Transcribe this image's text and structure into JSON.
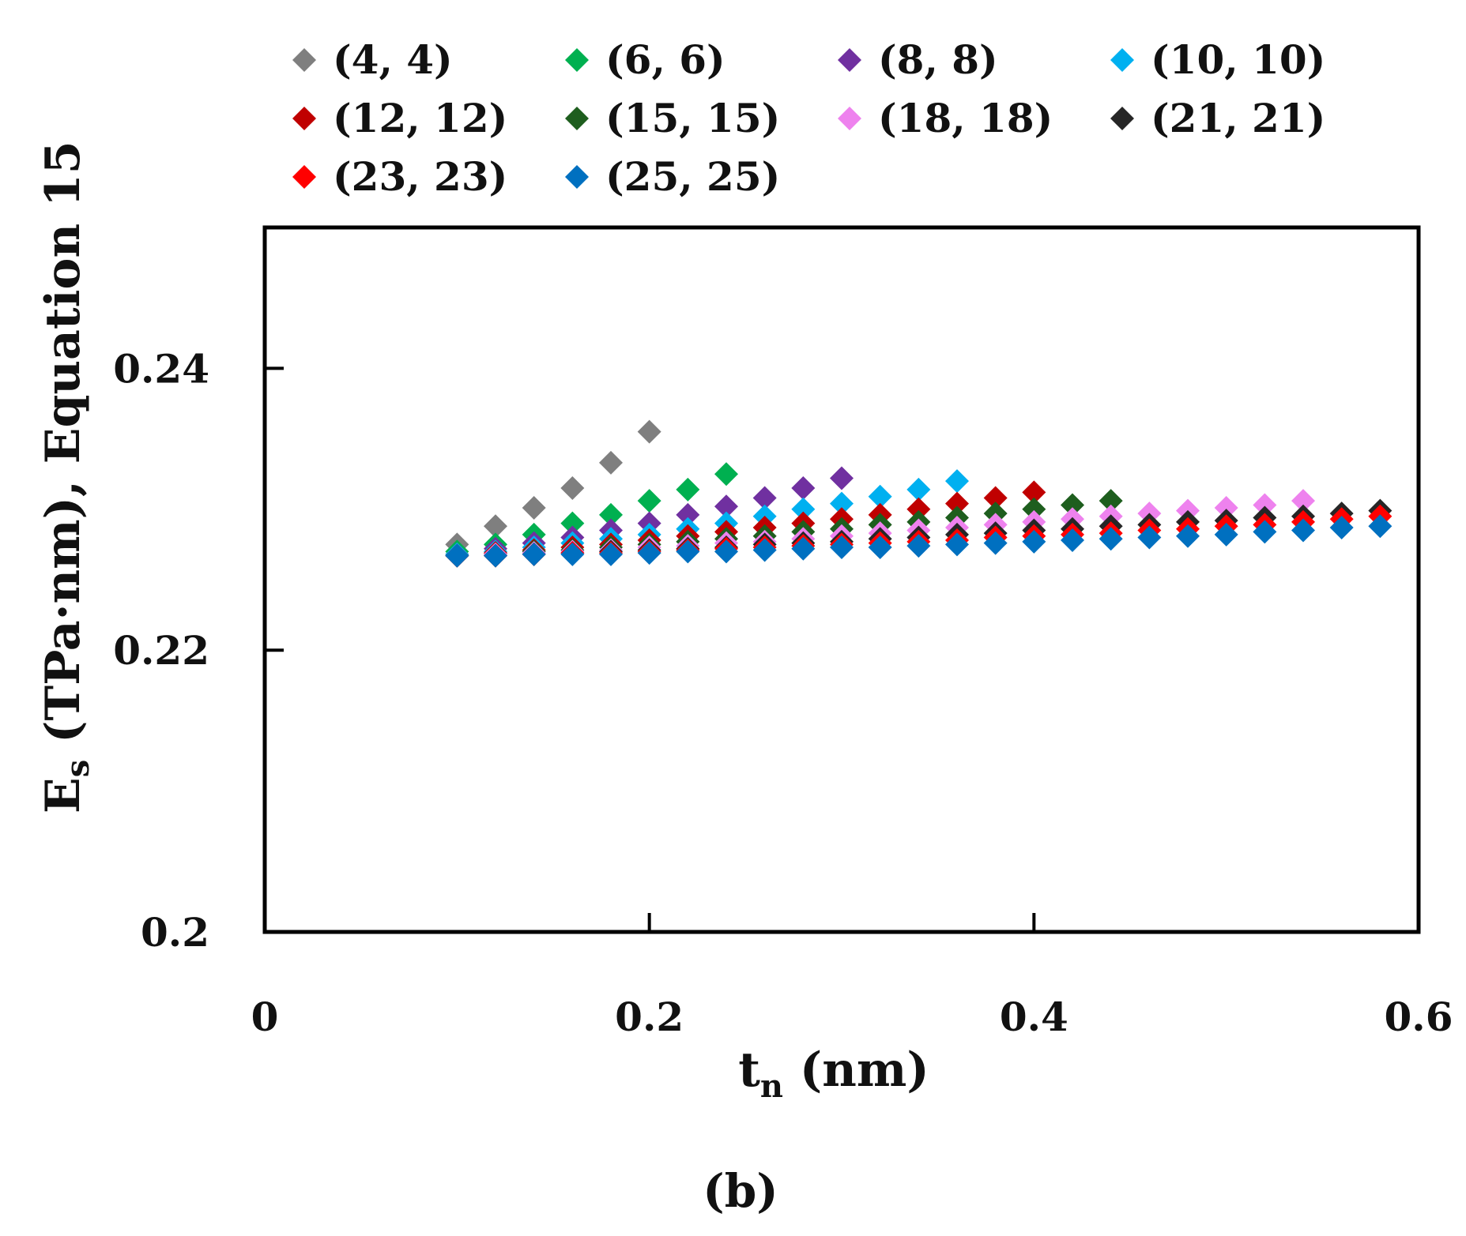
{
  "chart_data": {
    "type": "scatter",
    "panel_label": "(b)",
    "xlabel": {
      "main": "t",
      "sub": "n",
      "rest": " (nm)"
    },
    "ylabel": {
      "main": "E",
      "sub": "s",
      "rest": " (TPa·nm),  Equation 15"
    },
    "xlim": [
      0,
      0.6
    ],
    "ylim": [
      0.2,
      0.25
    ],
    "xticks": [
      0,
      0.2,
      0.4,
      0.6
    ],
    "xtick_labels": [
      "0",
      "0.2",
      "0.4",
      "0.6"
    ],
    "yticks": [
      0.2,
      0.22,
      0.24
    ],
    "ytick_labels": [
      "0.2",
      "0.22",
      "0.24"
    ],
    "grid": false,
    "legend_placement": "top",
    "marker": "diamond",
    "series": [
      {
        "name": "(4, 4)",
        "color": "#7f7f7f",
        "x": [
          0.1,
          0.12,
          0.14,
          0.16,
          0.18,
          0.2
        ],
        "y": [
          0.2275,
          0.2288,
          0.2301,
          0.2315,
          0.2333,
          0.2355
        ]
      },
      {
        "name": "(6, 6)",
        "color": "#00b050",
        "x": [
          0.1,
          0.12,
          0.14,
          0.16,
          0.18,
          0.2,
          0.22,
          0.24
        ],
        "y": [
          0.227,
          0.2275,
          0.2282,
          0.229,
          0.2296,
          0.2306,
          0.2314,
          0.2325
        ]
      },
      {
        "name": "(8, 8)",
        "color": "#7030a0",
        "x": [
          0.1,
          0.12,
          0.14,
          0.16,
          0.18,
          0.2,
          0.22,
          0.24,
          0.26,
          0.28,
          0.3
        ],
        "y": [
          0.2268,
          0.2272,
          0.2276,
          0.228,
          0.2285,
          0.229,
          0.2296,
          0.2302,
          0.2308,
          0.2315,
          0.2322
        ]
      },
      {
        "name": "(10, 10)",
        "color": "#00b0f0",
        "x": [
          0.1,
          0.12,
          0.14,
          0.16,
          0.18,
          0.2,
          0.22,
          0.24,
          0.26,
          0.28,
          0.3,
          0.32,
          0.34,
          0.36
        ],
        "y": [
          0.2268,
          0.227,
          0.2273,
          0.2276,
          0.2279,
          0.2282,
          0.2286,
          0.229,
          0.2295,
          0.23,
          0.2304,
          0.2309,
          0.2314,
          0.232
        ]
      },
      {
        "name": "(12, 12)",
        "color": "#c00000",
        "x": [
          0.1,
          0.12,
          0.14,
          0.16,
          0.18,
          0.2,
          0.22,
          0.24,
          0.26,
          0.28,
          0.3,
          0.32,
          0.34,
          0.36,
          0.38,
          0.4
        ],
        "y": [
          0.2267,
          0.2269,
          0.2271,
          0.2273,
          0.2275,
          0.2278,
          0.2281,
          0.2284,
          0.2287,
          0.229,
          0.2293,
          0.2296,
          0.23,
          0.2304,
          0.2308,
          0.2312
        ]
      },
      {
        "name": "(15, 15)",
        "color": "#1e5e1e",
        "x": [
          0.1,
          0.12,
          0.14,
          0.16,
          0.18,
          0.2,
          0.22,
          0.24,
          0.26,
          0.28,
          0.3,
          0.32,
          0.34,
          0.36,
          0.38,
          0.4,
          0.42,
          0.44
        ],
        "y": [
          0.2267,
          0.2268,
          0.227,
          0.2271,
          0.2273,
          0.2275,
          0.2277,
          0.2279,
          0.2281,
          0.2284,
          0.2286,
          0.2289,
          0.2291,
          0.2294,
          0.2297,
          0.23,
          0.2303,
          0.2306
        ]
      },
      {
        "name": "(18, 18)",
        "color": "#ee82ee",
        "x": [
          0.1,
          0.12,
          0.14,
          0.16,
          0.18,
          0.2,
          0.22,
          0.24,
          0.26,
          0.28,
          0.3,
          0.32,
          0.34,
          0.36,
          0.38,
          0.4,
          0.42,
          0.44,
          0.46,
          0.48,
          0.5,
          0.52,
          0.54
        ],
        "y": [
          0.2267,
          0.2268,
          0.2269,
          0.227,
          0.2271,
          0.2273,
          0.2274,
          0.2276,
          0.2277,
          0.2279,
          0.2281,
          0.2283,
          0.2285,
          0.2287,
          0.2289,
          0.2291,
          0.2293,
          0.2295,
          0.2297,
          0.2299,
          0.2301,
          0.2303,
          0.2306
        ]
      },
      {
        "name": "(21, 21)",
        "color": "#262626",
        "x": [
          0.1,
          0.12,
          0.14,
          0.16,
          0.18,
          0.2,
          0.22,
          0.24,
          0.26,
          0.28,
          0.3,
          0.32,
          0.34,
          0.36,
          0.38,
          0.4,
          0.42,
          0.44,
          0.46,
          0.48,
          0.5,
          0.52,
          0.54,
          0.56,
          0.58
        ],
        "y": [
          0.2267,
          0.2267,
          0.2268,
          0.2269,
          0.227,
          0.2271,
          0.2272,
          0.2273,
          0.2275,
          0.2276,
          0.2277,
          0.2279,
          0.228,
          0.2282,
          0.2283,
          0.2285,
          0.2286,
          0.2288,
          0.2289,
          0.2291,
          0.2292,
          0.2294,
          0.2295,
          0.2297,
          0.2299
        ]
      },
      {
        "name": "(23, 23)",
        "color": "#ff0000",
        "x": [
          0.1,
          0.12,
          0.14,
          0.16,
          0.18,
          0.2,
          0.22,
          0.24,
          0.26,
          0.28,
          0.3,
          0.32,
          0.34,
          0.36,
          0.38,
          0.4,
          0.42,
          0.44,
          0.46,
          0.48,
          0.5,
          0.52,
          0.54,
          0.56,
          0.58
        ],
        "y": [
          0.2267,
          0.2267,
          0.2268,
          0.2269,
          0.2269,
          0.227,
          0.2271,
          0.2272,
          0.2273,
          0.2274,
          0.2275,
          0.2276,
          0.2277,
          0.2278,
          0.228,
          0.2281,
          0.2282,
          0.2283,
          0.2285,
          0.2286,
          0.2288,
          0.2289,
          0.2291,
          0.2293,
          0.2295
        ]
      },
      {
        "name": "(25, 25)",
        "color": "#0070c0",
        "x": [
          0.1,
          0.12,
          0.14,
          0.16,
          0.18,
          0.2,
          0.22,
          0.24,
          0.26,
          0.28,
          0.3,
          0.32,
          0.34,
          0.36,
          0.38,
          0.4,
          0.42,
          0.44,
          0.46,
          0.48,
          0.5,
          0.52,
          0.54,
          0.56,
          0.58
        ],
        "y": [
          0.2267,
          0.2267,
          0.2268,
          0.2268,
          0.2268,
          0.2269,
          0.227,
          0.227,
          0.2271,
          0.2272,
          0.2273,
          0.2273,
          0.2274,
          0.2275,
          0.2276,
          0.2277,
          0.2278,
          0.2279,
          0.228,
          0.2281,
          0.2282,
          0.2284,
          0.2285,
          0.2287,
          0.2288
        ]
      }
    ]
  }
}
